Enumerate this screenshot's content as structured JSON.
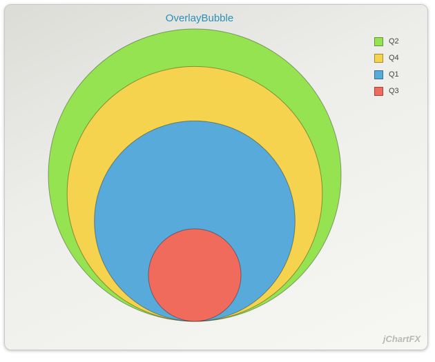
{
  "chart_data": {
    "type": "bubble",
    "title": "OverlayBubble",
    "series": [
      {
        "name": "Q2",
        "value": 100,
        "color": "#96e351"
      },
      {
        "name": "Q4",
        "value": 76,
        "color": "#f5d34e"
      },
      {
        "name": "Q1",
        "value": 47,
        "color": "#57aad9"
      },
      {
        "name": "Q3",
        "value": 10,
        "color": "#f06b5c"
      }
    ],
    "legend_position": "top-right"
  },
  "branding": {
    "watermark": "jChartFX"
  }
}
